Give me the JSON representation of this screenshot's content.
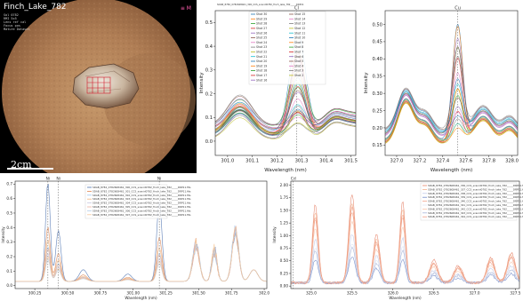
{
  "image_panel": {
    "title": "Finch_Lake_782",
    "sub_lines": [
      "Sol 0782",
      "RMI 5x5",
      "Lens ref cal",
      "Focus pos",
      "Mature Dataset"
    ],
    "scale_label": "2cm",
    "corner_glyph": "≡ M"
  },
  "chart_data": [
    {
      "id": "top-middle",
      "type": "line",
      "title": "SDAB_8782_0782608461_300_CCS_scanid0782_finch_lake_782_____DRP11",
      "xlabel": "Wavelength (nm)",
      "ylabel": "Intensity",
      "xlim": [
        300.95,
        301.52
      ],
      "ylim": [
        -0.06,
        0.55
      ],
      "xticks": [
        301.0,
        301.1,
        301.2,
        301.3,
        301.4,
        301.5
      ],
      "xtick_labels": [
        "301.0",
        "301.1",
        "301.2",
        "301.3",
        "301.4",
        "301.5"
      ],
      "yticks": [
        0.0,
        0.1,
        0.2,
        0.3,
        0.4,
        0.5
      ],
      "ytick_labels": [
        "0.0",
        "0.1",
        "0.2",
        "0.3",
        "0.4",
        "0.5"
      ],
      "peak_marker": {
        "x": 301.28,
        "label": "Cl"
      },
      "legend": [
        "Shot 30",
        "Shot 29",
        "Shot 28",
        "Shot 27",
        "Shot 26",
        "Shot 25",
        "Shot 24",
        "Shot 23",
        "Shot 22",
        "Shot 21",
        "Shot 20",
        "Shot 19",
        "Shot 18",
        "Shot 17",
        "Shot 16",
        "Shot 15",
        "Shot 14",
        "Shot 13",
        "Shot 12",
        "Shot 11",
        "Shot 10",
        "Shot 9",
        "Shot 8",
        "Shot 7",
        "Shot 6",
        "Shot 5",
        "Shot 4",
        "Shot 3",
        "Shot 2"
      ],
      "legend_position": "top",
      "grid": false
    },
    {
      "id": "top-right",
      "type": "line",
      "title": "",
      "xlabel": "Wavelength (nm)",
      "ylabel": "Intensity",
      "xlim": [
        326.9,
        328.05
      ],
      "ylim": [
        0.12,
        0.54
      ],
      "xticks": [
        327.0,
        327.2,
        327.4,
        327.6,
        327.8,
        328.0
      ],
      "xtick_labels": [
        "327.0",
        "327.2",
        "327.4",
        "327.6",
        "327.8",
        "328.0"
      ],
      "yticks": [
        0.15,
        0.2,
        0.25,
        0.3,
        0.35,
        0.4,
        0.45,
        0.5
      ],
      "ytick_labels": [
        "0.15",
        "0.20",
        "0.25",
        "0.30",
        "0.35",
        "0.40",
        "0.45",
        "0.50"
      ],
      "peak_marker": {
        "x": 327.53,
        "label": "Cu"
      },
      "grid": false
    },
    {
      "id": "bottom-left",
      "type": "line",
      "title": "",
      "xlabel": "Wavelength (nm)",
      "ylabel": "Intensity",
      "xlim": [
        300.1,
        302.02
      ],
      "ylim": [
        -0.02,
        0.72
      ],
      "xticks": [
        300.25,
        300.5,
        300.75,
        301.0,
        301.25,
        301.5,
        301.75,
        302.0
      ],
      "xtick_labels": [
        "300.25",
        "300.50",
        "300.75",
        "301.00",
        "301.25",
        "301.50",
        "301.75",
        "302.0"
      ],
      "yticks": [
        0.0,
        0.1,
        0.2,
        0.3,
        0.4,
        0.5,
        0.6,
        0.7
      ],
      "ytick_labels": [
        "0.0",
        "0.1",
        "0.2",
        "0.3",
        "0.4",
        "0.5",
        "0.6",
        "0.7"
      ],
      "peak_markers": [
        {
          "x": 300.35,
          "label": "Ni"
        },
        {
          "x": 300.43,
          "label": "Ni"
        },
        {
          "x": 301.2,
          "label": "Ni"
        }
      ],
      "legend": [
        "SDAB_8782_0782608461_300_CCS_scanid0782_finch_lake_782_____DRP11.fits",
        "SDAB_8782_0782608461_301_CCS_scanid0782_finch_lake_782_____DRP11.fits",
        "SDAB_8782_0782608461_302_CCS_scanid0782_finch_lake_782_____DRP11.fits",
        "SDAB_8782_0782608461_303_CCS_scanid0782_finch_lake_782_____DRP11.fits",
        "SDAB_8782_0782608461_304_CCS_scanid0782_finch_lake_782_____DRP11.fits",
        "SDAB_8782_0782608461_305_CCS_scanid0782_finch_lake_782_____DRP11.fits",
        "SDAB_8782_0782608461_306_CCS_scanid0782_finch_lake_782_____DRP11.fits",
        "SDAB_8782_0782608461_307_CCS_scanid0782_finch_lake_782_____DRP11.fits"
      ],
      "legend_position": "top-center",
      "grid": false
    },
    {
      "id": "bottom-right",
      "type": "line",
      "title": "",
      "xlabel": "Wavelength (nm)",
      "ylabel": "Intensity",
      "xlim": [
        324.75,
        327.55
      ],
      "ylim": [
        -0.05,
        2.08
      ],
      "xticks": [
        325.0,
        325.5,
        326.0,
        326.5,
        327.0,
        327.5
      ],
      "xtick_labels": [
        "325.0",
        "325.5",
        "326.0",
        "326.5",
        "327.0",
        "327.5"
      ],
      "yticks": [
        0.0,
        0.25,
        0.5,
        0.75,
        1.0,
        1.25,
        1.5,
        1.75,
        2.0
      ],
      "ytick_labels": [
        "0.00",
        "0.25",
        "0.50",
        "0.75",
        "1.00",
        "1.25",
        "1.50",
        "1.75",
        "2.00"
      ],
      "peak_marker": {
        "x": 324.78,
        "label": "Cd"
      },
      "legend": [
        "SDAB_8782_0782608461_336_CCS_scanid0782_finch_lake_782_____DRP11.fits",
        "SDAB_8782_0782608461_337_CCS_scanid0782_finch_lake_782_____DRP11.fits",
        "SDAB_8782_0782608461_338_CCS_scanid0782_finch_lake_782_____DRP11.fits",
        "SDAB_8782_0782608461_339_CCS_scanid0782_finch_lake_782_____DRP11.fits",
        "SDAB_8782_0782608461_340_CCS_scanid0782_finch_lake_782_____DRP11.fits",
        "SDAB_8782_0782608461_341_CCS_scanid0782_finch_lake_782_____DRP11.fits",
        "SDAB_8782_0782608461_342_CCS_scanid0782_finch_lake_782_____DRP11.fits",
        "SDAB_8782_0782608461_343_CCS_scanid0782_finch_lake_782_____DRP11.fits",
        "SDAB_8782_0782608461_344_CCS_scanid0782_finch_lake_782_____DRP11.fits"
      ],
      "legend_position": "top-right",
      "grid": false
    }
  ],
  "colors": {
    "palette": [
      "#1f77b4",
      "#ff7f0e",
      "#2ca02c",
      "#d62728",
      "#9467bd",
      "#8c564b",
      "#e377c2",
      "#7f7f7f",
      "#bcbd22",
      "#17becf"
    ],
    "bottom_left_palette": [
      "#4c72b0",
      "#dd8452",
      "#a1c9f4",
      "#f0b27a",
      "#c8c8e0",
      "#e8b0a0",
      "#b5cde8",
      "#f6c99a"
    ],
    "bottom_right_palette": [
      "#e6846a",
      "#f3b08a",
      "#c0c8e8",
      "#7088c8",
      "#f2a48b",
      "#dfe3f0",
      "#f7c3a9",
      "#a7b5d9",
      "#ee9b84"
    ]
  }
}
